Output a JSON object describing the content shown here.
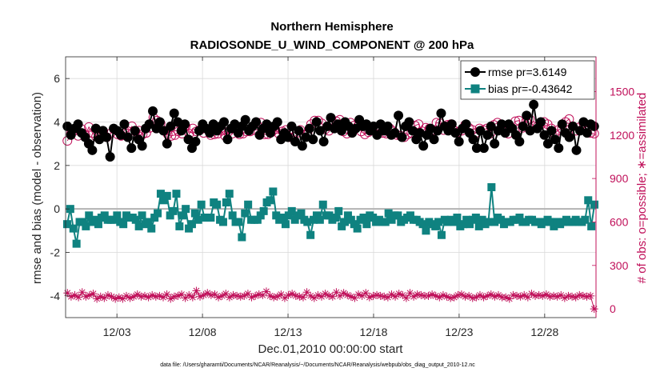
{
  "chart_data": {
    "type": "line",
    "title": "Northern Hemisphere",
    "subtitle": "RADIOSONDE_U_WIND_COMPONENT @ 200 hPa",
    "xlabel": "Dec.01,2010 00:00:00 start",
    "ylabel": "rmse and bias (model - observation)",
    "ylabel_right": "# of obs: o=possible; ∗=assimilated",
    "xlim": [
      0,
      31
    ],
    "ylim": [
      -5,
      7
    ],
    "ylim_right": [
      -60,
      1740
    ],
    "x_ticks": [
      {
        "x": 3,
        "label": "12/03"
      },
      {
        "x": 8,
        "label": "12/08"
      },
      {
        "x": 13,
        "label": "12/13"
      },
      {
        "x": 18,
        "label": "12/18"
      },
      {
        "x": 23,
        "label": "12/23"
      },
      {
        "x": 28,
        "label": "12/28"
      }
    ],
    "y_ticks": [
      "6",
      "4",
      "2",
      "0",
      "-2",
      "-4"
    ],
    "y_ticks_right": [
      "1500",
      "1200",
      "900",
      "600",
      "300",
      "0"
    ],
    "legend_position": "top-right",
    "footnote": "data file: /Users/gharamti/Documents/NCAR/Reanalysis/~/Documents/NCAR/Reanalysis/webpub/obs_diag_output_2010-12.nc",
    "colors": {
      "rmse": "#000000",
      "bias": "#0f8280",
      "obs": "#c0105a",
      "zero_line": "#b3b3b3",
      "grid": "#d9d9d9"
    },
    "series": [
      {
        "name": "rmse",
        "legend": "rmse pr=3.6149",
        "axis": "left",
        "values": [
          3.8,
          3.4,
          3.7,
          3.9,
          3.5,
          3.3,
          3.0,
          2.7,
          3.7,
          3.2,
          3.6,
          3.3,
          2.4,
          3.7,
          3.6,
          3.4,
          3.9,
          3.3,
          2.8,
          3.6,
          3.2,
          2.9,
          3.7,
          3.9,
          4.5,
          3.7,
          4.0,
          3.6,
          3.0,
          3.8,
          4.4,
          4.0,
          3.6,
          3.9,
          3.2,
          2.8,
          3.1,
          3.6,
          3.9,
          3.7,
          3.5,
          3.9,
          3.6,
          3.8,
          4.0,
          3.2,
          3.7,
          3.9,
          3.5,
          3.8,
          4.1,
          3.6,
          3.8,
          4.0,
          3.4,
          3.7,
          3.9,
          3.5,
          3.8,
          4.0,
          3.2,
          3.5,
          3.3,
          3.8,
          3.1,
          3.6,
          2.9,
          3.3,
          3.7,
          3.2,
          4.0,
          3.6,
          3.1,
          3.8,
          4.2,
          3.7,
          3.9,
          3.6,
          4.0,
          3.8,
          3.5,
          3.7,
          4.1,
          3.8,
          3.9,
          3.6,
          3.8,
          3.4,
          3.9,
          3.6,
          3.8,
          3.4,
          3.5,
          4.3,
          3.3,
          3.8,
          4.0,
          3.6,
          3.2,
          3.5,
          2.9,
          3.4,
          3.7,
          3.2,
          3.6,
          4.4,
          3.8,
          3.6,
          3.9,
          3.5,
          3.1,
          3.7,
          3.9,
          3.5,
          3.2,
          2.8,
          3.6,
          2.8,
          3.4,
          3.8,
          3.0,
          3.6,
          3.9,
          3.5,
          3.9,
          3.7,
          3.4,
          3.1,
          3.8,
          4.3,
          3.6,
          4.8,
          3.7,
          4.0,
          3.4,
          3.0,
          3.6,
          3.2,
          2.8,
          3.9,
          3.5,
          3.3,
          3.8,
          2.7,
          3.6,
          4.0,
          3.5,
          3.9,
          3.8
        ]
      },
      {
        "name": "bias",
        "legend": "bias pr=-0.43642",
        "axis": "left",
        "values": [
          -0.7,
          0.0,
          -0.9,
          -1.6,
          -0.6,
          -0.6,
          -0.8,
          -0.3,
          -0.6,
          -0.5,
          -0.7,
          -0.4,
          -0.3,
          -0.5,
          -0.5,
          -0.5,
          -0.3,
          -0.6,
          -0.7,
          -0.3,
          -0.4,
          -0.4,
          -0.5,
          -0.8,
          -0.3,
          -0.7,
          -0.6,
          -0.9,
          -0.4,
          -0.2,
          0.7,
          0.4,
          0.6,
          -0.3,
          -0.1,
          0.7,
          -0.8,
          -0.3,
          0.0,
          -0.9,
          -0.7,
          -0.2,
          -0.5,
          0.2,
          -0.4,
          -0.4,
          -0.4,
          0.3,
          0.2,
          -0.5,
          -0.6,
          0.3,
          0.7,
          -0.3,
          -0.6,
          -0.6,
          -1.3,
          -0.2,
          0.2,
          -0.5,
          -0.5,
          -0.5,
          -0.3,
          -0.1,
          0.3,
          0.4,
          0.8,
          -0.3,
          -0.5,
          -0.4,
          -0.7,
          -0.3,
          -0.1,
          -0.5,
          -0.3,
          -0.2,
          -0.5,
          -0.6,
          -1.2,
          -0.5,
          -0.3,
          -0.5,
          0.2,
          -0.3,
          -0.3,
          -0.5,
          -0.4,
          -0.1,
          -0.8,
          -0.6,
          -0.3,
          -0.5,
          -0.7,
          -0.9,
          -0.5,
          -0.4,
          -0.7,
          -0.3,
          -0.4,
          -0.6,
          -0.5,
          -0.6,
          -0.6,
          -0.2,
          -0.5,
          -0.3,
          -0.3,
          -0.6,
          -0.5,
          -0.4,
          -0.3,
          -0.5,
          -0.5,
          -0.6,
          -0.7,
          -1.0,
          -0.6,
          -0.7,
          -0.8,
          -0.6,
          -1.2,
          -0.5,
          -0.6,
          -0.5,
          -0.6,
          -0.4,
          -0.8,
          -0.7,
          -0.5,
          -0.7,
          -0.5,
          -0.4,
          -0.8,
          -0.5,
          -0.7,
          -0.6,
          1.0,
          -0.6,
          -0.4,
          -0.5,
          -0.7,
          -0.6,
          -0.6,
          -0.5,
          -0.5,
          -0.4,
          -0.6,
          -0.6,
          -0.5,
          -0.5,
          -0.6,
          -0.6,
          -0.7,
          -0.6,
          -0.5,
          -0.6,
          -0.8,
          -0.6,
          -0.7,
          -0.6,
          -0.5,
          -0.6,
          -0.6,
          -0.5,
          -0.6,
          -0.6,
          -0.5,
          0.4,
          -0.8,
          0.2
        ]
      },
      {
        "name": "obs possible",
        "marker": "circle",
        "axis": "right",
        "values": [
          1160,
          1210,
          1230,
          1195,
          1240,
          1200,
          1255,
          1215,
          1190,
          1200,
          1225,
          1185,
          1210,
          1240,
          1205,
          1195,
          1215,
          1225,
          1260,
          1225,
          1230,
          1205,
          1215,
          1250,
          1320,
          1300,
          1280,
          1230,
          1205,
          1195,
          1200,
          1225,
          1210,
          1260,
          1210,
          1245,
          1225,
          1235,
          1215,
          1240,
          1200,
          1205,
          1210,
          1230,
          1195,
          1225,
          1210,
          1240,
          1205,
          1210,
          1225,
          1225,
          1235,
          1265,
          1285,
          1205,
          1205,
          1220,
          1240,
          1210,
          1225,
          1235,
          1185,
          1220,
          1215,
          1235,
          1200,
          1215,
          1275,
          1300,
          1300,
          1280,
          1240,
          1230,
          1290,
          1295,
          1305,
          1225,
          1210,
          1285,
          1265,
          1260,
          1225,
          1205,
          1220,
          1235,
          1230,
          1240,
          1215,
          1210,
          1245,
          1225,
          1200,
          1195,
          1185,
          1205,
          1215,
          1265,
          1275,
          1225,
          1250,
          1245,
          1235,
          1285,
          1280,
          1235,
          1270,
          1275,
          1230,
          1220,
          1230,
          1270,
          1250,
          1235,
          1215,
          1245,
          1235,
          1245,
          1210,
          1270,
          1285,
          1245,
          1225,
          1210,
          1250,
          1295,
          1300,
          1250,
          1295,
          1310,
          1260,
          1255,
          1270,
          1290,
          1275,
          1245,
          1210,
          1235,
          1245,
          1290,
          1310,
          1260,
          1230,
          1255,
          1280,
          1230,
          1215,
          1210
        ]
      },
      {
        "name": "obs assimilated",
        "marker": "star",
        "axis": "right",
        "values": [
          110,
          85,
          95,
          80,
          115,
          85,
          95,
          105,
          70,
          85,
          75,
          95,
          85,
          70,
          80,
          70,
          90,
          75,
          85,
          100,
          85,
          90,
          80,
          95,
          85,
          90,
          80,
          100,
          70,
          85,
          90,
          100,
          75,
          95,
          80,
          125,
          85,
          95,
          110,
          95,
          100,
          80,
          90,
          105,
          80,
          95,
          90,
          85,
          90,
          105,
          80,
          90,
          100,
          95,
          120,
          90,
          80,
          85,
          100,
          75,
          95,
          105,
          90,
          85,
          80,
          115,
          90,
          75,
          95,
          85,
          105,
          90,
          85,
          115,
          90,
          110,
          95,
          85,
          75,
          100,
          90,
          110,
          80,
          90,
          95,
          90,
          85,
          80,
          100,
          85,
          105,
          95,
          75,
          110,
          85,
          100,
          95,
          90,
          90,
          100,
          90,
          80,
          95,
          85,
          75,
          80,
          95,
          100,
          85,
          90,
          75,
          80,
          95,
          80,
          90,
          100,
          85,
          95,
          80,
          80,
          70,
          95,
          90,
          85,
          95,
          80,
          105,
          90,
          95,
          90,
          100,
          85,
          90,
          85,
          95,
          75,
          90,
          85,
          80,
          95,
          90,
          85,
          90,
          0
        ]
      }
    ]
  }
}
